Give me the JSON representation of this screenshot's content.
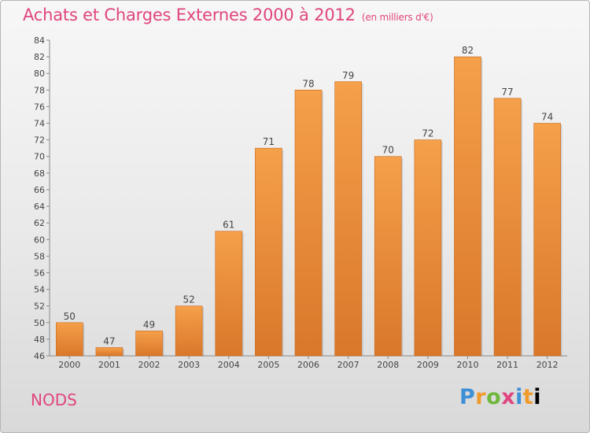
{
  "header": {
    "title": "Achats et Charges Externes 2000 à 2012",
    "unit": "(en milliers d'€)"
  },
  "footer": {
    "commune": "NODS",
    "brand_letters": [
      "P",
      "r",
      "o",
      "x",
      "i",
      "t",
      "i"
    ]
  },
  "colors": {
    "title": "#e0457e",
    "bar_top": "#f5a04a",
    "bar_bottom": "#d9772a",
    "axis": "#888888"
  },
  "chart_data": {
    "type": "bar",
    "title": "Achats et Charges Externes 2000 à 2012",
    "categories": [
      "2000",
      "2001",
      "2002",
      "2003",
      "2004",
      "2005",
      "2006",
      "2007",
      "2008",
      "2009",
      "2010",
      "2011",
      "2012"
    ],
    "values": [
      50,
      47,
      49,
      52,
      61,
      71,
      78,
      79,
      70,
      72,
      82,
      77,
      74
    ],
    "ylim": [
      46,
      84
    ],
    "yticks": [
      46,
      48,
      50,
      52,
      54,
      56,
      58,
      60,
      62,
      64,
      66,
      68,
      70,
      72,
      74,
      76,
      78,
      80,
      82,
      84
    ],
    "grid": false,
    "data_labels": true
  }
}
